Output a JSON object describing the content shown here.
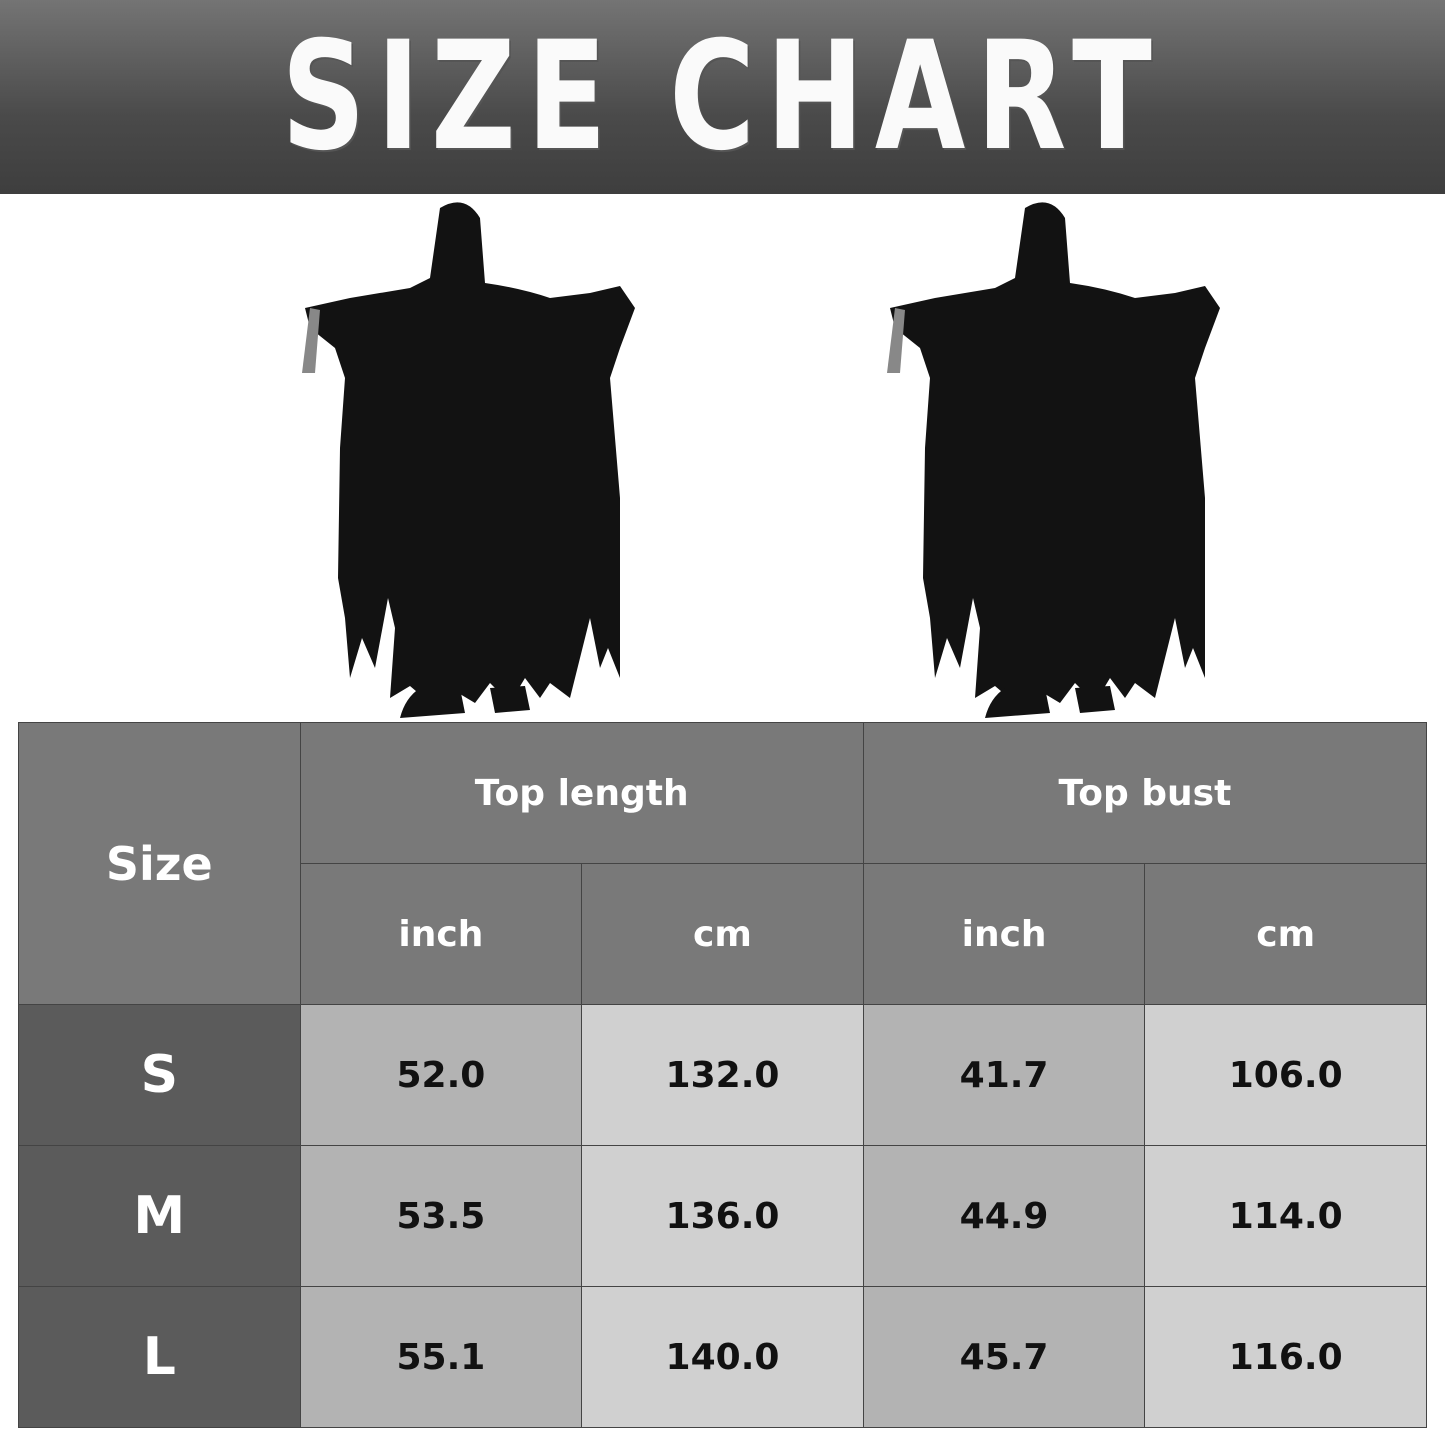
{
  "title": "SIZE CHART",
  "colors": {
    "banner": "#4a4a4a",
    "header": "#797979",
    "size_column": "#5b5b5b",
    "inch_cells": "#b3b3b3",
    "cm_cells": "#d0d0d0"
  },
  "images": [
    "hooded-black-robe-costume-figure",
    "hooded-black-robe-costume-figure"
  ],
  "chart_data": {
    "type": "table",
    "title": "SIZE CHART",
    "header": {
      "size": "Size",
      "groups": [
        "Top length",
        "Top bust"
      ],
      "units": [
        "inch",
        "cm",
        "inch",
        "cm"
      ]
    },
    "rows": [
      {
        "size": "S",
        "values": [
          "52.0",
          "132.0",
          "41.7",
          "106.0"
        ]
      },
      {
        "size": "M",
        "values": [
          "53.5",
          "136.0",
          "44.9",
          "114.0"
        ]
      },
      {
        "size": "L",
        "values": [
          "55.1",
          "140.0",
          "45.7",
          "116.0"
        ]
      }
    ]
  }
}
